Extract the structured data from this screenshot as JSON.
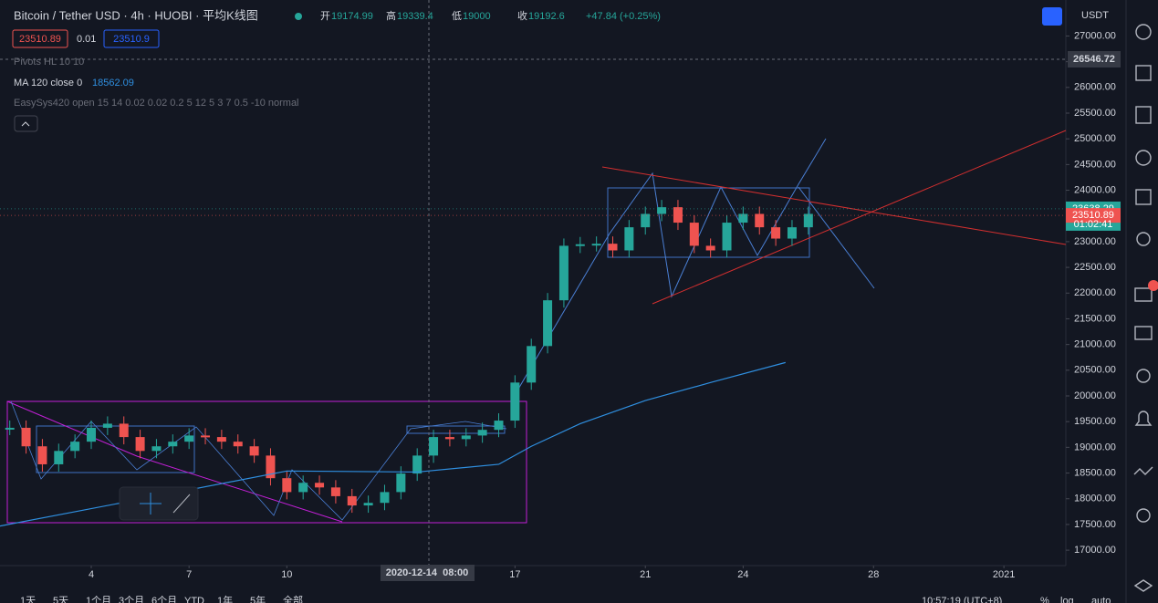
{
  "chart_data": {
    "type": "candlestick",
    "title": "Bitcoin / Tether USD · 4h · HUOBI · 平均K线图",
    "ohlc": [
      {
        "name": "开",
        "value": 19174.99
      },
      {
        "name": "高",
        "value": 19339.4
      },
      {
        "name": "低",
        "value": 19000
      },
      {
        "name": "收",
        "value": 19192.6
      }
    ],
    "change": "+47.84 (+0.25%)",
    "badges": [
      23510.89,
      0.01,
      23510.9
    ],
    "indicators": [
      "Pivots HL 10 10",
      "MA 120 close 0",
      "EasySys420 open 15 14 0.02 0.02 0.2 5 12 5 3 7 0.5 -10 normal"
    ],
    "ma_value": 18562.09,
    "currency": "USDT",
    "x": [
      1.5,
      2,
      2.5,
      3,
      3.5,
      4,
      4.5,
      5,
      5.5,
      6,
      6.5,
      7,
      7.5,
      8,
      8.5,
      9,
      9.5,
      10,
      10.5,
      11,
      11.5,
      12,
      12.5,
      13,
      13.5,
      14,
      14.5,
      15,
      15.5,
      16,
      16.5,
      17,
      17.5,
      18,
      18.5,
      19,
      19.5,
      20,
      20.5,
      21,
      21.5,
      22,
      22.5,
      23,
      23.5,
      24,
      24.5,
      25,
      25.5,
      26
    ],
    "series": [
      {
        "name": "close",
        "up_color": "#26a69a",
        "down_color": "#ef5350",
        "values": [
          19380,
          19020,
          18670,
          18930,
          19110,
          19380,
          19460,
          19200,
          18930,
          19020,
          19110,
          19230,
          19200,
          19110,
          19020,
          18840,
          18400,
          18130,
          18310,
          18220,
          18050,
          17870,
          17920,
          18130,
          18490,
          18840,
          19200,
          19160,
          19230,
          19340,
          19520,
          20260,
          20970,
          21860,
          22920,
          22950,
          22960,
          22830,
          23280,
          23540,
          23670,
          23370,
          22920,
          22830,
          23370,
          23540,
          23280,
          23060,
          23280,
          23540
        ]
      }
    ],
    "ma": {
      "color": "#2f8fe0",
      "x": [
        1.2,
        6,
        10,
        14,
        16.5,
        17.5,
        19,
        21,
        23,
        25.3
      ],
      "values": [
        17470,
        18050,
        18540,
        18520,
        18670,
        19020,
        19460,
        19910,
        20260,
        20650
      ]
    },
    "xlim": [
      1.2,
      33.9
    ],
    "ylim": [
      16700,
      27700
    ],
    "xticks": [
      4,
      7,
      10,
      17,
      21,
      24,
      28,
      {
        "value": 32,
        "label": "2021"
      }
    ],
    "yticks": [
      {
        "value": 27000,
        "label": "27000.00"
      },
      {
        "value": 26500,
        "label": "26500.00"
      },
      {
        "value": 26000,
        "label": "26000.00"
      },
      {
        "value": 25500,
        "label": "25500.00"
      },
      {
        "value": 25000,
        "label": "25000.00"
      },
      {
        "value": 24500,
        "label": "24500.00"
      },
      {
        "value": 24000,
        "label": "24000.00"
      },
      {
        "value": 23500,
        "label": "23500.00"
      },
      {
        "value": 23000,
        "label": "23000.00"
      },
      {
        "value": 22500,
        "label": "22500.00"
      },
      {
        "value": 22000,
        "label": "22000.00"
      },
      {
        "value": 21500,
        "label": "21500.00"
      },
      {
        "value": 21000,
        "label": "21000.00"
      },
      {
        "value": 20500,
        "label": "20500.00"
      },
      {
        "value": 20000,
        "label": "20000.00"
      },
      {
        "value": 19500,
        "label": "19500.00"
      },
      {
        "value": 19000,
        "label": "19000.00"
      },
      {
        "value": 18500,
        "label": "18500.00"
      },
      {
        "value": 18000,
        "label": "18000.00"
      },
      {
        "value": 17500,
        "label": "17500.00"
      },
      {
        "value": 17000,
        "label": "17000.00"
      }
    ],
    "crosshair_price": 26546.72,
    "crosshair_date": "2020-12-14  08:00",
    "price_labels": [
      {
        "value": 23638.29,
        "color": "#26a69a"
      },
      {
        "value": 23510.89,
        "color": "#ef5350"
      }
    ],
    "countdown": "01:02:41",
    "toolbar": [
      "1天",
      "5天",
      "1个月",
      "3个月",
      "6个月",
      "YTD",
      "1年",
      "5年",
      "全部"
    ],
    "clock": "10:57:19 (UTC+8)",
    "scale_buttons": [
      "%",
      "log",
      "auto"
    ]
  }
}
